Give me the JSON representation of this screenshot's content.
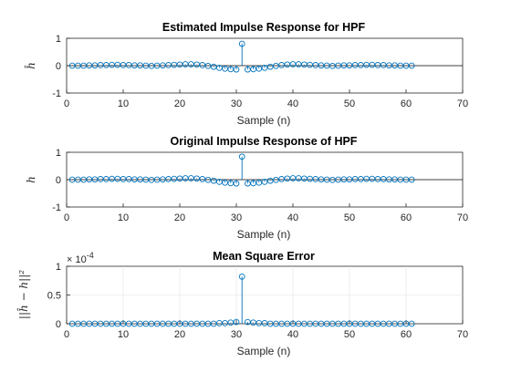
{
  "chart_data": [
    {
      "type": "stem",
      "title": "Estimated Impulse Response for HPF",
      "xlabel": "Sample (n)",
      "ylabel": "ĥ",
      "xlim": [
        0,
        70
      ],
      "ylim": [
        -1,
        1
      ],
      "xticks": [
        0,
        10,
        20,
        30,
        40,
        50,
        60,
        70
      ],
      "yticks": [
        -1,
        0,
        1
      ],
      "grid": false,
      "baseline": true,
      "color": "#0072BD",
      "x": [
        1,
        2,
        3,
        4,
        5,
        6,
        7,
        8,
        9,
        10,
        11,
        12,
        13,
        14,
        15,
        16,
        17,
        18,
        19,
        20,
        21,
        22,
        23,
        24,
        25,
        26,
        27,
        28,
        29,
        30,
        31,
        32,
        33,
        34,
        35,
        36,
        37,
        38,
        39,
        40,
        41,
        42,
        43,
        44,
        45,
        46,
        47,
        48,
        49,
        50,
        51,
        52,
        53,
        54,
        55,
        56,
        57,
        58,
        59,
        60,
        61
      ],
      "values": [
        0,
        0,
        0,
        0.01,
        0.01,
        0.02,
        0.02,
        0.03,
        0.03,
        0.02,
        0.02,
        0.01,
        0.01,
        0,
        -0.01,
        0,
        0.01,
        0.02,
        0.03,
        0.04,
        0.05,
        0.05,
        0.04,
        0.02,
        -0.01,
        -0.04,
        -0.08,
        -0.11,
        -0.13,
        -0.14,
        0.8,
        -0.14,
        -0.13,
        -0.11,
        -0.08,
        -0.04,
        -0.01,
        0.02,
        0.04,
        0.05,
        0.05,
        0.04,
        0.03,
        0.02,
        0.01,
        0,
        -0.01,
        0,
        0.01,
        0.01,
        0.02,
        0.02,
        0.03,
        0.03,
        0.02,
        0.02,
        0.01,
        0.01,
        0,
        0,
        0
      ]
    },
    {
      "type": "stem",
      "title": "Original Impulse Response of HPF",
      "xlabel": "Sample (n)",
      "ylabel": "h",
      "xlim": [
        0,
        70
      ],
      "ylim": [
        -1,
        1
      ],
      "xticks": [
        0,
        10,
        20,
        30,
        40,
        50,
        60,
        70
      ],
      "yticks": [
        -1,
        0,
        1
      ],
      "grid": false,
      "baseline": true,
      "color": "#0072BD",
      "x": [
        1,
        2,
        3,
        4,
        5,
        6,
        7,
        8,
        9,
        10,
        11,
        12,
        13,
        14,
        15,
        16,
        17,
        18,
        19,
        20,
        21,
        22,
        23,
        24,
        25,
        26,
        27,
        28,
        29,
        30,
        31,
        32,
        33,
        34,
        35,
        36,
        37,
        38,
        39,
        40,
        41,
        42,
        43,
        44,
        45,
        46,
        47,
        48,
        49,
        50,
        51,
        52,
        53,
        54,
        55,
        56,
        57,
        58,
        59,
        60,
        61
      ],
      "values": [
        0,
        0,
        0,
        0.01,
        0.01,
        0.02,
        0.02,
        0.03,
        0.03,
        0.02,
        0.02,
        0.01,
        0.01,
        0,
        -0.01,
        0,
        0.01,
        0.02,
        0.03,
        0.04,
        0.05,
        0.05,
        0.04,
        0.02,
        -0.01,
        -0.04,
        -0.08,
        -0.11,
        -0.13,
        -0.14,
        0.84,
        -0.14,
        -0.13,
        -0.11,
        -0.08,
        -0.04,
        -0.01,
        0.02,
        0.04,
        0.05,
        0.05,
        0.04,
        0.03,
        0.02,
        0.01,
        0,
        -0.01,
        0,
        0.01,
        0.01,
        0.02,
        0.02,
        0.03,
        0.03,
        0.02,
        0.02,
        0.01,
        0.01,
        0,
        0,
        0
      ]
    },
    {
      "type": "stem",
      "title": "Mean Square Error",
      "xlabel": "Sample (n)",
      "ylabel": "||ĥ − h||²",
      "exponent_label": "× 10",
      "exponent_power": "-4",
      "xlim": [
        0,
        70
      ],
      "ylim": [
        0,
        1
      ],
      "xticks": [
        0,
        10,
        20,
        30,
        40,
        50,
        60,
        70
      ],
      "yticks": [
        0,
        0.5,
        1
      ],
      "grid": true,
      "baseline": false,
      "color": "#0072BD",
      "x": [
        1,
        2,
        3,
        4,
        5,
        6,
        7,
        8,
        9,
        10,
        11,
        12,
        13,
        14,
        15,
        16,
        17,
        18,
        19,
        20,
        21,
        22,
        23,
        24,
        25,
        26,
        27,
        28,
        29,
        30,
        31,
        32,
        33,
        34,
        35,
        36,
        37,
        38,
        39,
        40,
        41,
        42,
        43,
        44,
        45,
        46,
        47,
        48,
        49,
        50,
        51,
        52,
        53,
        54,
        55,
        56,
        57,
        58,
        59,
        60,
        61
      ],
      "values": [
        0,
        0,
        0,
        0,
        0,
        0,
        0,
        0,
        0,
        0,
        0,
        0,
        0,
        0,
        0,
        0,
        0,
        0,
        0,
        0,
        0,
        0,
        0,
        0,
        0,
        0,
        0.01,
        0.01,
        0.02,
        0.03,
        0.82,
        0.03,
        0.02,
        0.01,
        0.01,
        0,
        0,
        0,
        0,
        0,
        0,
        0,
        0,
        0,
        0,
        0,
        0,
        0,
        0,
        0,
        0,
        0,
        0,
        0,
        0,
        0,
        0,
        0,
        0,
        0,
        0
      ]
    }
  ]
}
